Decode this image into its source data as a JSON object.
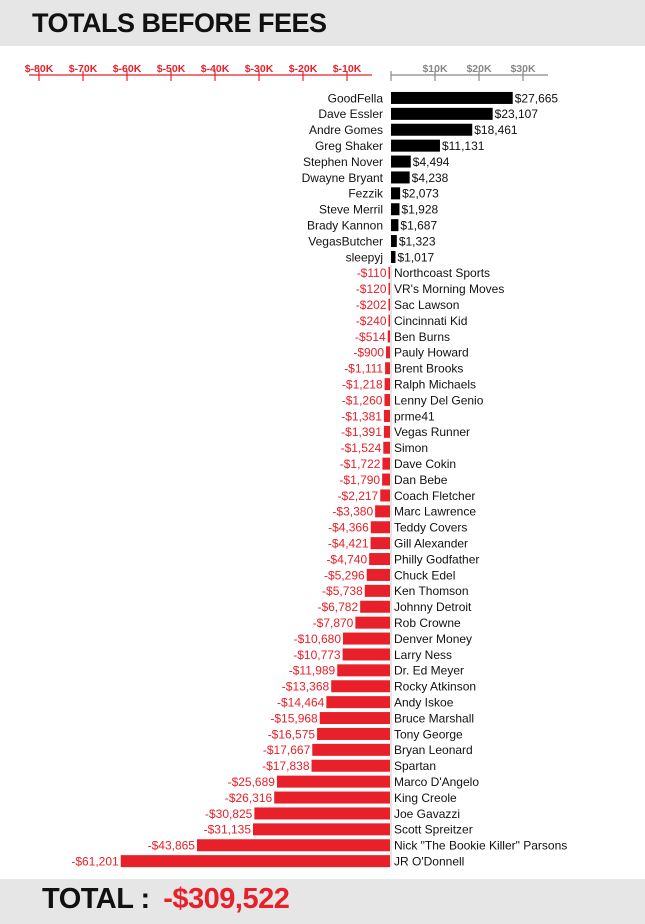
{
  "title": "TOTALS BEFORE FEES",
  "total": {
    "label": "TOTAL",
    "separator": ":",
    "value": "-$309,522"
  },
  "colors": {
    "positive": "#000000",
    "negative": "#e8202a",
    "axis_negative": "#e8202a",
    "axis_positive": "#888888",
    "band": "#e6e6e6"
  },
  "chart_data": {
    "type": "bar",
    "orientation": "horizontal",
    "title": "TOTALS BEFORE FEES",
    "xlim": [
      -80000,
      30000
    ],
    "grid": false,
    "ticks_negative": [
      "$-80K",
      "$-70K",
      "$-60K",
      "$-50K",
      "$-40K",
      "$-30K",
      "$-20K",
      "$-10K"
    ],
    "ticks_negative_values": [
      -80000,
      -70000,
      -60000,
      -50000,
      -40000,
      -30000,
      -20000,
      -10000
    ],
    "ticks_positive": [
      "$10K",
      "$20K",
      "$30K"
    ],
    "ticks_positive_values": [
      10000,
      20000,
      30000
    ],
    "rows": [
      {
        "name": "GoodFella",
        "value": 27665,
        "label": "$27,665"
      },
      {
        "name": "Dave Essler",
        "value": 23107,
        "label": "$23,107"
      },
      {
        "name": "Andre Gomes",
        "value": 18461,
        "label": "$18,461"
      },
      {
        "name": "Greg Shaker",
        "value": 11131,
        "label": "$11,131"
      },
      {
        "name": "Stephen Nover",
        "value": 4494,
        "label": "$4,494"
      },
      {
        "name": "Dwayne Bryant",
        "value": 4238,
        "label": "$4,238"
      },
      {
        "name": "Fezzik",
        "value": 2073,
        "label": "$2,073"
      },
      {
        "name": "Steve Merril",
        "value": 1928,
        "label": "$1,928"
      },
      {
        "name": "Brady Kannon",
        "value": 1687,
        "label": "$1,687"
      },
      {
        "name": "VegasButcher",
        "value": 1323,
        "label": "$1,323"
      },
      {
        "name": "sleepyj",
        "value": 1017,
        "label": "$1,017"
      },
      {
        "name": "Northcoast Sports",
        "value": -110,
        "label": "-$110"
      },
      {
        "name": "VR's Morning Moves",
        "value": -120,
        "label": "-$120"
      },
      {
        "name": "Sac Lawson",
        "value": -202,
        "label": "-$202"
      },
      {
        "name": "Cincinnati Kid",
        "value": -240,
        "label": "-$240"
      },
      {
        "name": "Ben Burns",
        "value": -514,
        "label": "-$514"
      },
      {
        "name": "Pauly Howard",
        "value": -900,
        "label": "-$900"
      },
      {
        "name": "Brent Brooks",
        "value": -1111,
        "label": "-$1,111"
      },
      {
        "name": "Ralph Michaels",
        "value": -1218,
        "label": "-$1,218"
      },
      {
        "name": "Lenny Del Genio",
        "value": -1260,
        "label": "-$1,260"
      },
      {
        "name": "prme41",
        "value": -1381,
        "label": "-$1,381"
      },
      {
        "name": "Vegas Runner",
        "value": -1391,
        "label": "-$1,391"
      },
      {
        "name": "Simon",
        "value": -1524,
        "label": "-$1,524"
      },
      {
        "name": "Dave Cokin",
        "value": -1722,
        "label": "-$1,722"
      },
      {
        "name": "Dan Bebe",
        "value": -1790,
        "label": "-$1,790"
      },
      {
        "name": "Coach Fletcher",
        "value": -2217,
        "label": "-$2,217"
      },
      {
        "name": "Marc Lawrence",
        "value": -3380,
        "label": "-$3,380"
      },
      {
        "name": "Teddy Covers",
        "value": -4366,
        "label": "-$4,366"
      },
      {
        "name": "Gill Alexander",
        "value": -4421,
        "label": "-$4,421"
      },
      {
        "name": "Philly Godfather",
        "value": -4740,
        "label": "-$4,740"
      },
      {
        "name": "Chuck Edel",
        "value": -5296,
        "label": "-$5,296"
      },
      {
        "name": "Ken Thomson",
        "value": -5738,
        "label": "-$5,738"
      },
      {
        "name": "Johnny Detroit",
        "value": -6782,
        "label": "-$6,782"
      },
      {
        "name": "Rob Crowne",
        "value": -7870,
        "label": "-$7,870"
      },
      {
        "name": "Denver Money",
        "value": -10680,
        "label": "-$10,680"
      },
      {
        "name": "Larry Ness",
        "value": -10773,
        "label": "-$10,773"
      },
      {
        "name": "Dr. Ed Meyer",
        "value": -11989,
        "label": "-$11,989"
      },
      {
        "name": "Rocky Atkinson",
        "value": -13368,
        "label": "-$13,368"
      },
      {
        "name": "Andy Iskoe",
        "value": -14464,
        "label": "-$14,464"
      },
      {
        "name": "Bruce Marshall",
        "value": -15968,
        "label": "-$15,968"
      },
      {
        "name": "Tony George",
        "value": -16575,
        "label": "-$16,575"
      },
      {
        "name": "Bryan Leonard",
        "value": -17667,
        "label": "-$17,667"
      },
      {
        "name": "Spartan",
        "value": -17838,
        "label": "-$17,838"
      },
      {
        "name": "Marco D'Angelo",
        "value": -25689,
        "label": "-$25,689"
      },
      {
        "name": "King Creole",
        "value": -26316,
        "label": "-$26,316"
      },
      {
        "name": "Joe Gavazzi",
        "value": -30825,
        "label": "-$30,825"
      },
      {
        "name": "Scott Spreitzer",
        "value": -31135,
        "label": "-$31,135"
      },
      {
        "name": "Nick \"The Bookie Killer\" Parsons",
        "value": -43865,
        "label": "-$43,865"
      },
      {
        "name": "JR O'Donnell",
        "value": -61201,
        "label": "-$61,201"
      }
    ]
  }
}
